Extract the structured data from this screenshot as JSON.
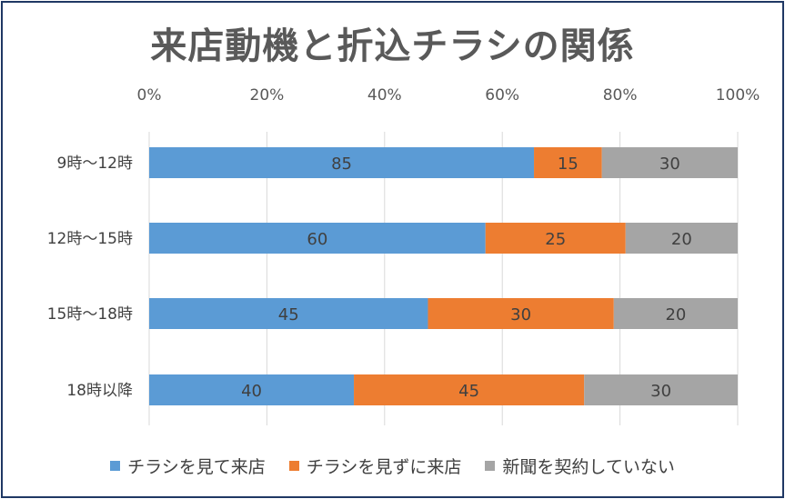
{
  "chart_data": {
    "type": "bar",
    "orientation": "horizontal",
    "stacked": "percent",
    "title": "来店動機と折込チラシの関係",
    "categories": [
      "9時～12時",
      "12時～15時",
      "15時～18時",
      "18時以降"
    ],
    "series": [
      {
        "name": "チラシを見て来店",
        "color": "#5b9bd5",
        "values": [
          85,
          60,
          45,
          40
        ]
      },
      {
        "name": "チラシを見ずに来店",
        "color": "#ed7d31",
        "values": [
          15,
          25,
          30,
          45
        ]
      },
      {
        "name": "新聞を契約していない",
        "color": "#a5a5a5",
        "values": [
          30,
          20,
          20,
          30
        ]
      }
    ],
    "xticks": [
      "0%",
      "20%",
      "40%",
      "60%",
      "80%",
      "100%"
    ],
    "xlim": [
      0,
      100
    ],
    "grid": true,
    "legend_position": "bottom"
  }
}
